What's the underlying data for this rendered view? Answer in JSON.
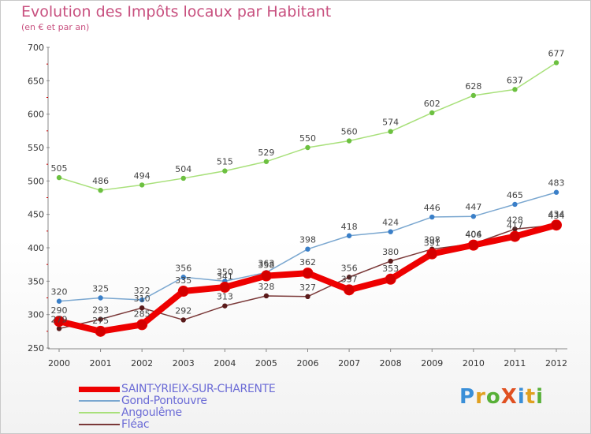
{
  "header": {
    "title": "Evolution des Impôts locaux par Habitant",
    "subtitle": "(en € et par an)"
  },
  "logo": {
    "text": "ProXiti",
    "letters": [
      {
        "ch": "P",
        "color": "#3a8fd8"
      },
      {
        "ch": "r",
        "color": "#e0a020"
      },
      {
        "ch": "o",
        "color": "#58b038"
      },
      {
        "ch": "X",
        "color": "#e05020"
      },
      {
        "ch": "i",
        "color": "#3a8fd8"
      },
      {
        "ch": "t",
        "color": "#e0a020"
      },
      {
        "ch": "i",
        "color": "#58b038"
      }
    ]
  },
  "chart_data": {
    "type": "line",
    "title": "Evolution des Impôts locaux par Habitant",
    "subtitle": "(en € et par an)",
    "x": [
      2000,
      2001,
      2002,
      2003,
      2004,
      2005,
      2006,
      2007,
      2008,
      2009,
      2010,
      2011,
      2012
    ],
    "ylim": [
      250,
      700
    ],
    "yticks": [
      250,
      300,
      350,
      400,
      450,
      500,
      550,
      600,
      650,
      700
    ],
    "grid": false,
    "legend_position": "bottom-left",
    "series": [
      {
        "name": "SAINT-YRIEIX-SUR-CHARENTE",
        "color": "#ee0000",
        "marker": "#d40000",
        "values": [
          290,
          275,
          285,
          335,
          341,
          358,
          362,
          337,
          353,
          391,
          404,
          417,
          434
        ]
      },
      {
        "name": "Gond-Pontouvre",
        "color": "#7aa7d0",
        "marker": "#3a7fc8",
        "values": [
          320,
          325,
          322,
          356,
          350,
          363,
          398,
          418,
          424,
          446,
          447,
          465,
          483
        ]
      },
      {
        "name": "Angoulême",
        "color": "#a8e07a",
        "marker": "#6cc040",
        "values": [
          505,
          486,
          494,
          504,
          515,
          529,
          550,
          560,
          574,
          602,
          628,
          637,
          677
        ]
      },
      {
        "name": "Fléac",
        "color": "#7a3838",
        "marker": "#5a1a1a",
        "values": [
          279,
          293,
          310,
          292,
          313,
          328,
          327,
          356,
          380,
          398,
          406,
          428,
          434
        ]
      }
    ]
  }
}
